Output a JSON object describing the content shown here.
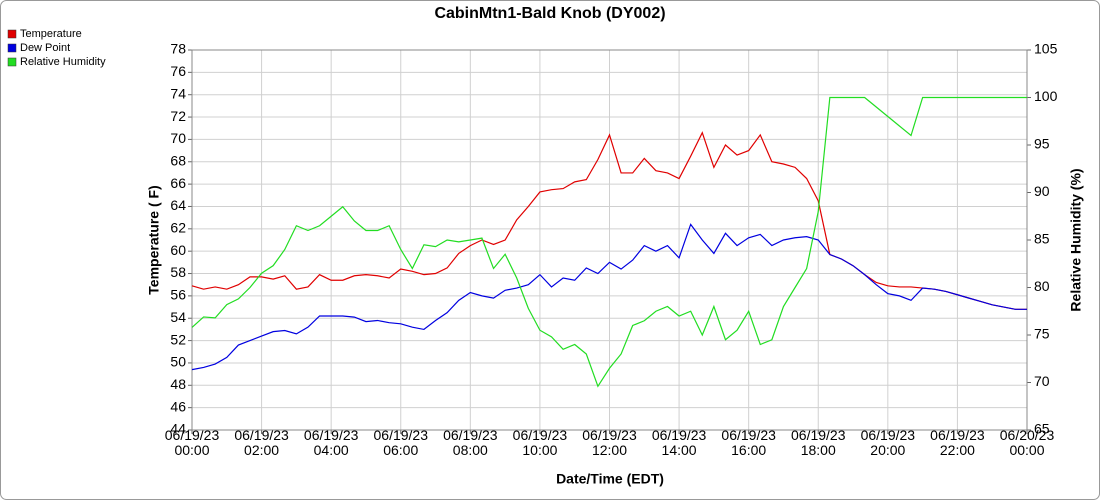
{
  "chart_data": {
    "type": "line",
    "title": "CabinMtn1-Bald Knob (DY002)",
    "x_label": "Date/Time (EDT)",
    "y_label": "Temperature ( F)",
    "y2_label": "Relative Humidity (%)",
    "x": [
      0,
      20,
      40,
      60,
      80,
      100,
      120,
      140,
      160,
      180,
      200,
      220,
      240,
      260,
      280,
      300,
      320,
      340,
      360,
      380,
      400,
      420,
      440,
      460,
      480,
      500,
      520,
      540,
      560,
      580,
      600,
      620,
      640,
      660,
      680,
      700,
      720,
      740,
      760,
      780,
      800,
      820,
      840,
      860,
      880,
      900,
      920,
      940,
      960,
      980,
      1000,
      1020,
      1040,
      1060,
      1080,
      1100,
      1120,
      1140,
      1160,
      1180,
      1200,
      1220,
      1240,
      1260,
      1280,
      1300,
      1320,
      1340,
      1360,
      1380,
      1400,
      1420,
      1440
    ],
    "xlim": [
      0,
      1440
    ],
    "xticks": [
      {
        "value": 0,
        "label": "06/19/23 00:00"
      },
      {
        "value": 120,
        "label": "06/19/23 02:00"
      },
      {
        "value": 240,
        "label": "06/19/23 04:00"
      },
      {
        "value": 360,
        "label": "06/19/23 06:00"
      },
      {
        "value": 480,
        "label": "06/19/23 08:00"
      },
      {
        "value": 600,
        "label": "06/19/23 10:00"
      },
      {
        "value": 720,
        "label": "06/19/23 12:00"
      },
      {
        "value": 840,
        "label": "06/19/23 14:00"
      },
      {
        "value": 960,
        "label": "06/19/23 16:00"
      },
      {
        "value": 1080,
        "label": "06/19/23 18:00"
      },
      {
        "value": 1200,
        "label": "06/19/23 20:00"
      },
      {
        "value": 1320,
        "label": "06/19/23 22:00"
      },
      {
        "value": 1440,
        "label": "06/20/23 00:00"
      }
    ],
    "ylim": [
      44,
      78
    ],
    "yticks": [
      44,
      46,
      48,
      50,
      52,
      54,
      56,
      58,
      60,
      62,
      64,
      66,
      68,
      70,
      72,
      74,
      76,
      78
    ],
    "y2lim": [
      65,
      105
    ],
    "y2ticks": [
      65,
      70,
      75,
      80,
      85,
      90,
      95,
      100,
      105
    ],
    "grid": true,
    "legend": "top-left",
    "series": [
      {
        "name": "Temperature",
        "color": "#e00000",
        "values": [
          56.9,
          56.6,
          56.8,
          56.6,
          57.0,
          57.7,
          57.7,
          57.5,
          57.8,
          56.6,
          56.8,
          57.9,
          57.4,
          57.4,
          57.8,
          57.9,
          57.8,
          57.6,
          58.4,
          58.2,
          57.9,
          58.0,
          58.5,
          59.8,
          60.5,
          61.0,
          60.6,
          61.0,
          62.8,
          64.0,
          65.3,
          65.5,
          65.6,
          66.2,
          66.4,
          68.2,
          70.4,
          67.0,
          67.0,
          68.3,
          67.2,
          67.0,
          66.5,
          68.5,
          70.6,
          67.5,
          69.5,
          68.6,
          69.0,
          70.4,
          68.0,
          67.8,
          67.5,
          66.5,
          64.5,
          59.7,
          59.3,
          58.7,
          57.9,
          57.2,
          56.9,
          56.8,
          56.8,
          56.7,
          56.6,
          56.4,
          56.1,
          55.8,
          55.5,
          55.2,
          55.0,
          54.8,
          54.8
        ]
      },
      {
        "name": "Dew Point",
        "color": "#0000e0",
        "values": [
          49.4,
          49.6,
          49.9,
          50.5,
          51.6,
          52.0,
          52.4,
          52.8,
          52.9,
          52.6,
          53.2,
          54.2,
          54.2,
          54.2,
          54.1,
          53.7,
          53.8,
          53.6,
          53.5,
          53.2,
          53.0,
          53.8,
          54.5,
          55.6,
          56.3,
          56.0,
          55.8,
          56.5,
          56.7,
          57.0,
          57.9,
          56.8,
          57.6,
          57.4,
          58.5,
          58.0,
          59.0,
          58.4,
          59.2,
          60.5,
          60.0,
          60.5,
          59.4,
          62.4,
          61.0,
          59.8,
          61.6,
          60.5,
          61.2,
          61.5,
          60.5,
          61.0,
          61.2,
          61.3,
          61.0,
          59.7,
          59.3,
          58.7,
          57.9,
          57.0,
          56.2,
          56.0,
          55.6,
          56.7,
          56.6,
          56.4,
          56.1,
          55.8,
          55.5,
          55.2,
          55.0,
          54.8,
          54.8
        ]
      },
      {
        "name": "Relative Humidity",
        "color": "#22dd22",
        "axis": "y2",
        "values": [
          75.8,
          76.9,
          76.8,
          78.2,
          78.8,
          80.0,
          81.5,
          82.3,
          84.0,
          86.5,
          86.0,
          86.5,
          87.5,
          88.5,
          87.0,
          86.0,
          86.0,
          86.5,
          84.0,
          82.0,
          84.5,
          84.3,
          85.0,
          84.8,
          85.0,
          85.2,
          82.0,
          83.5,
          81.0,
          77.8,
          75.5,
          74.8,
          73.5,
          74.0,
          73.0,
          69.6,
          71.5,
          73.0,
          76.0,
          76.5,
          77.5,
          78.0,
          77.0,
          77.5,
          75.0,
          78.0,
          74.5,
          75.5,
          77.5,
          74.0,
          74.5,
          78.0,
          80.0,
          82.0,
          88.0,
          100,
          100,
          100,
          100,
          99.0,
          98.0,
          97.0,
          96.0,
          100,
          100,
          100,
          100,
          100,
          100,
          100,
          100,
          100,
          100
        ]
      }
    ]
  }
}
